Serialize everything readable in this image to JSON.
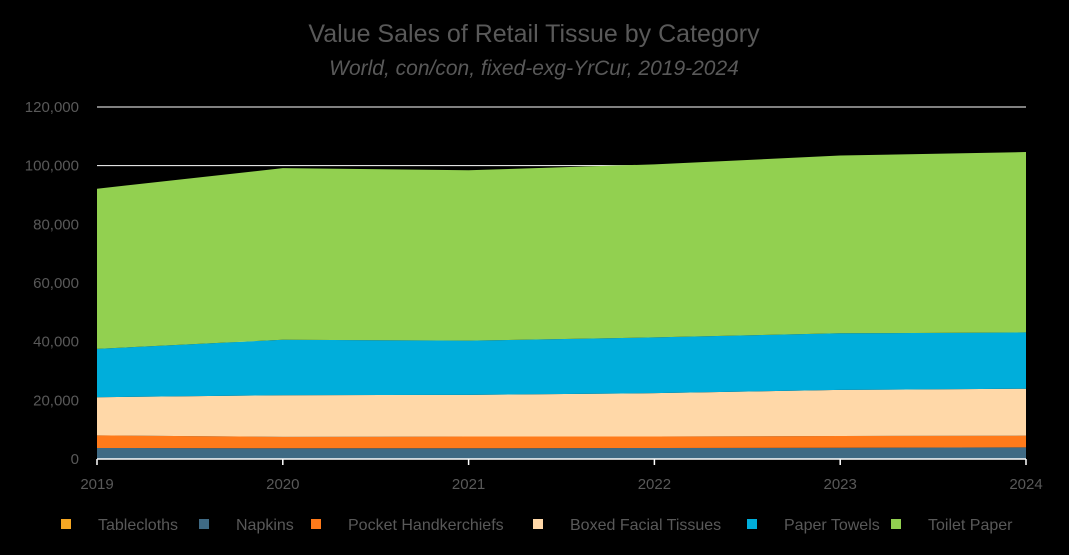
{
  "chart_data": {
    "type": "area",
    "stacked": true,
    "title": "Value Sales of Retail Tissue by Category",
    "subtitle": "World, con/con, fixed-exg-YrCur, 2019-2024",
    "xlabel": "",
    "ylabel": "",
    "x": [
      "2019",
      "2020",
      "2021",
      "2022",
      "2023",
      "2024"
    ],
    "ylim": [
      0,
      120000
    ],
    "yticks": [
      0,
      20000,
      40000,
      60000,
      80000,
      100000,
      120000
    ],
    "ytick_labels": [
      "0",
      "20,000",
      "40,000",
      "60,000",
      "80,000",
      "100,000",
      "120,000"
    ],
    "grid": true,
    "legend_position": "bottom",
    "series": [
      {
        "name": "Tablecloths",
        "color": "#F5A623",
        "values": [
          150,
          150,
          150,
          150,
          150,
          150
        ]
      },
      {
        "name": "Napkins",
        "color": "#3F6A84",
        "values": [
          3600,
          3500,
          3500,
          3600,
          3700,
          3800
        ]
      },
      {
        "name": "Pocket Handkerchiefs",
        "color": "#FF7A1A",
        "values": [
          4300,
          3900,
          4000,
          3900,
          4000,
          4000
        ]
      },
      {
        "name": "Boxed Facial Tissues",
        "color": "#FFD8A8",
        "values": [
          13000,
          14200,
          14200,
          14800,
          15700,
          16000
        ]
      },
      {
        "name": "Paper Towels",
        "color": "#00AEDB",
        "values": [
          16500,
          18900,
          18500,
          19000,
          19300,
          19200
        ]
      },
      {
        "name": "Toilet Paper",
        "color": "#92D050",
        "values": [
          54600,
          58500,
          58100,
          59000,
          60600,
          61500
        ]
      }
    ]
  }
}
